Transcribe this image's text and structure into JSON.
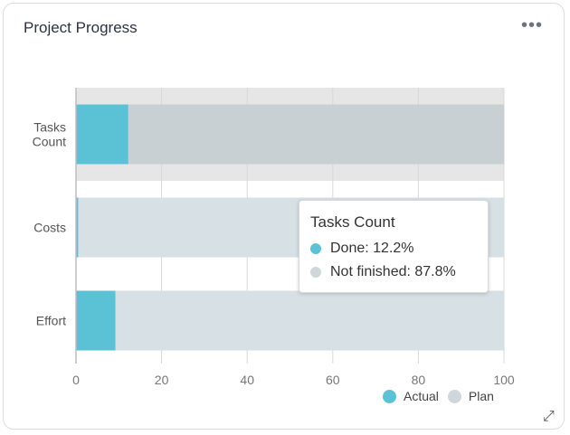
{
  "widget": {
    "title": "Project Progress",
    "menu_icon": "more-horizontal-icon",
    "resize_icon": "resize-icon"
  },
  "colors": {
    "actual": "#5bc2d6",
    "plan_selected": "#c8d0d4",
    "plan": "#d7e0e5",
    "selected_band": "#e6e6e6",
    "grid": "#d8d8d8"
  },
  "chart_data": {
    "type": "bar",
    "orientation": "horizontal",
    "categories": [
      "Tasks\nCount",
      "Costs",
      "Effort"
    ],
    "series": [
      {
        "name": "Actual",
        "values": [
          12.2,
          0.5,
          9.2
        ]
      },
      {
        "name": "Plan",
        "values": [
          100,
          100,
          100
        ]
      }
    ],
    "xlim": [
      0,
      100
    ],
    "xticks": [
      0,
      20,
      40,
      60,
      80,
      100
    ],
    "grid": true,
    "legend": "bottom-right",
    "selected_category": 0
  },
  "tooltip": {
    "title": "Tasks Count",
    "rows": [
      {
        "label": "Done: 12.2%"
      },
      {
        "label": "Not finished: 87.8%"
      }
    ]
  },
  "legend": {
    "actual_label": "Actual",
    "plan_label": "Plan"
  }
}
